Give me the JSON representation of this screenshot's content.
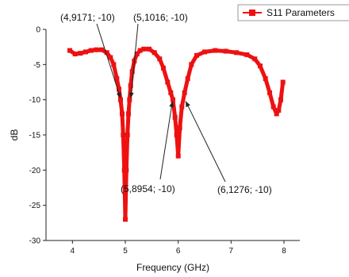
{
  "chart_data": {
    "type": "line",
    "xlabel": "Frequency (GHz)",
    "ylabel": "dB",
    "xlim": [
      3.5,
      8.3
    ],
    "ylim": [
      -30,
      0
    ],
    "xticks": [
      4,
      5,
      6,
      7,
      8
    ],
    "yticks": [
      0,
      -5,
      -10,
      -15,
      -20,
      -25,
      -30
    ],
    "xtick_labels": [
      "4",
      "5",
      "6",
      "7",
      "8"
    ],
    "ytick_labels": [
      "0",
      "-5",
      "-10",
      "-15",
      "-20",
      "-25",
      "-30"
    ],
    "grid": false,
    "legend_position": "top-right",
    "series": [
      {
        "name": "S11 Parameters",
        "color": "#ee1111",
        "marker": "square",
        "x": [
          3.95,
          4.05,
          4.15,
          4.25,
          4.35,
          4.45,
          4.55,
          4.65,
          4.72,
          4.78,
          4.84,
          4.88,
          4.91,
          4.94,
          4.96,
          4.98,
          5.0,
          5.02,
          5.04,
          5.06,
          5.08,
          5.1,
          5.13,
          5.17,
          5.22,
          5.28,
          5.35,
          5.45,
          5.55,
          5.65,
          5.72,
          5.8,
          5.86,
          5.9,
          5.94,
          5.97,
          6.0,
          6.03,
          6.07,
          6.12,
          6.18,
          6.25,
          6.35,
          6.5,
          6.7,
          6.9,
          7.1,
          7.3,
          7.45,
          7.55,
          7.65,
          7.73,
          7.8,
          7.86,
          7.9,
          7.94,
          7.98
        ],
        "values": [
          -3.0,
          -3.5,
          -3.4,
          -3.2,
          -3.0,
          -2.9,
          -2.9,
          -3.3,
          -4.0,
          -5.0,
          -7.0,
          -8.5,
          -10.0,
          -12.0,
          -15.0,
          -20.0,
          -27.0,
          -20.0,
          -15.0,
          -12.0,
          -10.0,
          -8.0,
          -6.0,
          -4.5,
          -3.5,
          -3.0,
          -2.8,
          -2.8,
          -3.3,
          -4.2,
          -5.5,
          -7.5,
          -9.0,
          -10.0,
          -12.5,
          -15.0,
          -18.0,
          -14.0,
          -11.0,
          -9.0,
          -7.0,
          -5.0,
          -3.7,
          -3.2,
          -3.0,
          -3.1,
          -3.3,
          -3.6,
          -4.2,
          -5.2,
          -7.0,
          -9.0,
          -11.0,
          -12.0,
          -11.5,
          -10.0,
          -7.5
        ]
      }
    ],
    "annotations": [
      {
        "text": "(4,9171; -10)",
        "x": 4.9171,
        "y": -10
      },
      {
        "text": "(5,1016; -10)",
        "x": 5.1016,
        "y": -10
      },
      {
        "text": "(5,8954; -10)",
        "x": 5.8954,
        "y": -10
      },
      {
        "text": "(6,1276; -10)",
        "x": 6.1276,
        "y": -10
      }
    ]
  }
}
